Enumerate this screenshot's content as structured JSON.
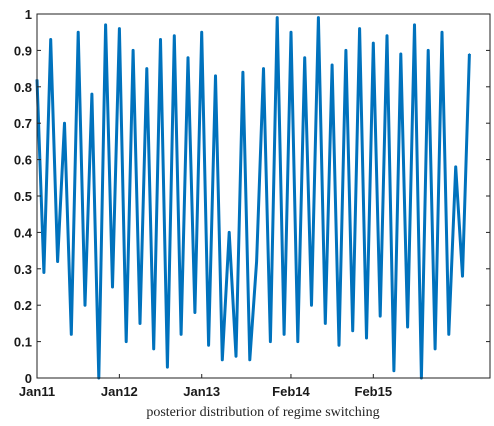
{
  "chart_data": {
    "type": "line",
    "title": "",
    "xlabel": "posterior distribution of regime switching",
    "ylabel": "",
    "ylim": [
      0,
      1
    ],
    "yticks": [
      0,
      0.1,
      0.2,
      0.3,
      0.4,
      0.5,
      0.6,
      0.7,
      0.8,
      0.9,
      1
    ],
    "ytick_labels": [
      "0",
      "0.1",
      "0.2",
      "0.3",
      "0.4",
      "0.5",
      "0.6",
      "0.7",
      "0.8",
      "0.9",
      "1"
    ],
    "xlim": [
      "2011-01",
      "2016-07"
    ],
    "xticks": [
      "2011-01",
      "2012-01",
      "2013-01",
      "2014-02",
      "2015-02"
    ],
    "xtick_labels": [
      "Jan11",
      "Jan12",
      "Jan13",
      "Feb14",
      "Feb15"
    ],
    "grid": false,
    "series": [
      {
        "color": "#0072bd",
        "x": [
          "2011-01",
          "2011-02",
          "2011-03",
          "2011-04",
          "2011-05",
          "2011-06",
          "2011-07",
          "2011-08",
          "2011-09",
          "2011-10",
          "2011-11",
          "2011-12",
          "2012-01",
          "2012-02",
          "2012-03",
          "2012-04",
          "2012-05",
          "2012-06",
          "2012-07",
          "2012-08",
          "2012-09",
          "2012-10",
          "2012-11",
          "2012-12",
          "2013-01",
          "2013-02",
          "2013-03",
          "2013-04",
          "2013-05",
          "2013-06",
          "2013-07",
          "2013-08",
          "2013-09",
          "2013-10",
          "2013-11",
          "2013-12",
          "2014-01",
          "2014-02",
          "2014-03",
          "2014-04",
          "2014-05",
          "2014-06",
          "2014-07",
          "2014-08",
          "2014-09",
          "2014-10",
          "2014-11",
          "2014-12",
          "2015-01",
          "2015-02",
          "2015-03",
          "2015-04",
          "2015-05",
          "2015-06",
          "2015-07",
          "2015-08",
          "2015-09",
          "2015-10",
          "2015-11",
          "2015-12",
          "2016-01",
          "2016-02",
          "2016-03",
          "2016-04"
        ],
        "values": [
          0.82,
          0.29,
          0.93,
          0.32,
          0.7,
          0.12,
          0.95,
          0.2,
          0.78,
          0.0,
          0.97,
          0.25,
          0.96,
          0.1,
          0.9,
          0.15,
          0.85,
          0.08,
          0.93,
          0.03,
          0.94,
          0.12,
          0.88,
          0.18,
          0.95,
          0.09,
          0.83,
          0.05,
          0.4,
          0.06,
          0.84,
          0.05,
          0.32,
          0.85,
          0.1,
          0.99,
          0.12,
          0.95,
          0.1,
          0.88,
          0.2,
          0.99,
          0.15,
          0.86,
          0.09,
          0.9,
          0.13,
          0.96,
          0.11,
          0.92,
          0.17,
          0.94,
          0.02,
          0.89,
          0.14,
          0.97,
          0.0,
          0.9,
          0.08,
          0.95,
          0.12,
          0.58,
          0.28,
          0.89
        ]
      }
    ]
  }
}
